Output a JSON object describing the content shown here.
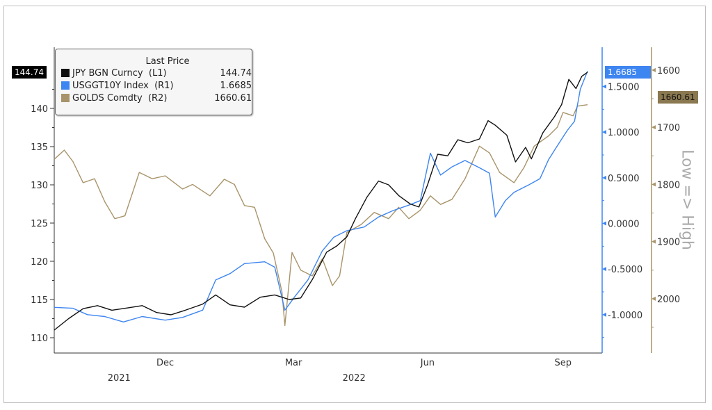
{
  "chart_data": {
    "type": "line",
    "title": "",
    "legend": {
      "title": "Last Price",
      "placement": "top-left"
    },
    "x_ticks": [
      {
        "label": "Dec",
        "date": "2021-12-01"
      },
      {
        "label": "Mar",
        "date": "2022-02-28"
      },
      {
        "label": "Jun",
        "date": "2022-06-01"
      },
      {
        "label": "Sep",
        "date": "2022-09-03"
      }
    ],
    "year_labels": [
      {
        "label": "2021",
        "date": "2021-10-30"
      },
      {
        "label": "2022",
        "date": "2022-04-11"
      }
    ],
    "xlim": [
      "2021-09-15",
      "2022-09-20"
    ],
    "axes": {
      "L1": {
        "range": [
          108,
          148
        ],
        "ticks": [
          "110",
          "115",
          "120",
          "125",
          "130",
          "135",
          "140"
        ],
        "color": "#000000"
      },
      "R1": {
        "range": [
          -1.42,
          1.93
        ],
        "ticks": [
          "1.5000",
          "1.0000",
          "0.5000",
          "0.0000",
          "-0.5000",
          "-1.0000"
        ],
        "color": "#3d85f0"
      },
      "R2": {
        "range": [
          1560,
          2095
        ],
        "inverted": true,
        "ticks": [
          "1600",
          "1700",
          "1800",
          "1900",
          "2000"
        ],
        "color": "#a8946a",
        "label": "Low => High"
      }
    },
    "series": [
      {
        "name": "JPY BGN Curncy",
        "axis": "L1",
        "label": "(L1)",
        "last": "144.74",
        "color": "#111111",
        "points": [
          [
            "2021-09-15",
            111
          ],
          [
            "2021-09-25",
            112.5
          ],
          [
            "2021-10-05",
            113.8
          ],
          [
            "2021-10-15",
            114.2
          ],
          [
            "2021-10-25",
            113.6
          ],
          [
            "2021-11-05",
            113.9
          ],
          [
            "2021-11-15",
            114.2
          ],
          [
            "2021-11-25",
            113.3
          ],
          [
            "2021-12-05",
            113.0
          ],
          [
            "2021-12-15",
            113.6
          ],
          [
            "2021-12-27",
            114.4
          ],
          [
            "2022-01-05",
            115.6
          ],
          [
            "2022-01-15",
            114.3
          ],
          [
            "2022-01-25",
            114.0
          ],
          [
            "2022-02-05",
            115.3
          ],
          [
            "2022-02-15",
            115.6
          ],
          [
            "2022-02-25",
            115.0
          ],
          [
            "2022-03-05",
            115.2
          ],
          [
            "2022-03-13",
            117.6
          ],
          [
            "2022-03-23",
            121.2
          ],
          [
            "2022-03-30",
            122.0
          ],
          [
            "2022-04-06",
            123.2
          ],
          [
            "2022-04-12",
            125.6
          ],
          [
            "2022-04-20",
            128.4
          ],
          [
            "2022-04-28",
            130.5
          ],
          [
            "2022-05-05",
            130.0
          ],
          [
            "2022-05-12",
            128.6
          ],
          [
            "2022-05-20",
            127.5
          ],
          [
            "2022-05-26",
            127.1
          ],
          [
            "2022-06-01",
            130.0
          ],
          [
            "2022-06-08",
            134.0
          ],
          [
            "2022-06-15",
            133.8
          ],
          [
            "2022-06-22",
            135.9
          ],
          [
            "2022-06-29",
            135.5
          ],
          [
            "2022-07-07",
            136.0
          ],
          [
            "2022-07-13",
            138.4
          ],
          [
            "2022-07-18",
            137.8
          ],
          [
            "2022-07-26",
            136.5
          ],
          [
            "2022-08-01",
            133.0
          ],
          [
            "2022-08-08",
            134.9
          ],
          [
            "2022-08-12",
            133.4
          ],
          [
            "2022-08-20",
            136.8
          ],
          [
            "2022-08-28",
            138.9
          ],
          [
            "2022-09-02",
            140.5
          ],
          [
            "2022-09-07",
            143.8
          ],
          [
            "2022-09-12",
            142.6
          ],
          [
            "2022-09-16",
            144.2
          ],
          [
            "2022-09-20",
            144.74
          ]
        ]
      },
      {
        "name": "USGGT10Y Index",
        "axis": "R1",
        "label": "(R1)",
        "last": "1.6685",
        "color": "#3d85f0",
        "points": [
          [
            "2021-09-15",
            -0.92
          ],
          [
            "2021-09-28",
            -0.93
          ],
          [
            "2021-10-08",
            -1.0
          ],
          [
            "2021-10-20",
            -1.02
          ],
          [
            "2021-11-02",
            -1.08
          ],
          [
            "2021-11-15",
            -1.02
          ],
          [
            "2021-12-01",
            -1.06
          ],
          [
            "2021-12-13",
            -1.03
          ],
          [
            "2021-12-27",
            -0.95
          ],
          [
            "2022-01-05",
            -0.62
          ],
          [
            "2022-01-15",
            -0.55
          ],
          [
            "2022-01-25",
            -0.44
          ],
          [
            "2022-02-08",
            -0.42
          ],
          [
            "2022-02-15",
            -0.48
          ],
          [
            "2022-02-22",
            -0.95
          ],
          [
            "2022-03-01",
            -0.8
          ],
          [
            "2022-03-10",
            -0.62
          ],
          [
            "2022-03-20",
            -0.3
          ],
          [
            "2022-03-28",
            -0.15
          ],
          [
            "2022-04-06",
            -0.08
          ],
          [
            "2022-04-18",
            -0.04
          ],
          [
            "2022-04-28",
            0.07
          ],
          [
            "2022-05-08",
            0.14
          ],
          [
            "2022-05-19",
            0.2
          ],
          [
            "2022-05-27",
            0.25
          ],
          [
            "2022-06-03",
            0.77
          ],
          [
            "2022-06-10",
            0.53
          ],
          [
            "2022-06-18",
            0.62
          ],
          [
            "2022-06-27",
            0.69
          ],
          [
            "2022-07-07",
            0.61
          ],
          [
            "2022-07-14",
            0.55
          ],
          [
            "2022-07-18",
            0.07
          ],
          [
            "2022-07-25",
            0.25
          ],
          [
            "2022-07-31",
            0.34
          ],
          [
            "2022-08-10",
            0.42
          ],
          [
            "2022-08-18",
            0.49
          ],
          [
            "2022-08-24",
            0.7
          ],
          [
            "2022-08-30",
            0.85
          ],
          [
            "2022-09-06",
            1.02
          ],
          [
            "2022-09-11",
            1.12
          ],
          [
            "2022-09-15",
            1.47
          ],
          [
            "2022-09-20",
            1.6685
          ]
        ]
      },
      {
        "name": "GOLDS Comdty",
        "axis": "R2",
        "label": "(R2)",
        "last": "1660.61",
        "color": "#a8946a",
        "points": [
          [
            "2021-09-15",
            1756
          ],
          [
            "2021-09-22",
            1740
          ],
          [
            "2021-09-28",
            1760
          ],
          [
            "2021-10-05",
            1797
          ],
          [
            "2021-10-13",
            1790
          ],
          [
            "2021-10-20",
            1830
          ],
          [
            "2021-10-27",
            1860
          ],
          [
            "2021-11-03",
            1855
          ],
          [
            "2021-11-13",
            1779
          ],
          [
            "2021-11-22",
            1790
          ],
          [
            "2021-12-01",
            1785
          ],
          [
            "2021-12-13",
            1808
          ],
          [
            "2021-12-20",
            1800
          ],
          [
            "2022-01-01",
            1820
          ],
          [
            "2022-01-11",
            1791
          ],
          [
            "2022-01-18",
            1800
          ],
          [
            "2022-01-25",
            1837
          ],
          [
            "2022-02-01",
            1840
          ],
          [
            "2022-02-08",
            1895
          ],
          [
            "2022-02-14",
            1920
          ],
          [
            "2022-02-20",
            1988
          ],
          [
            "2022-02-22",
            2047
          ],
          [
            "2022-02-27",
            1919
          ],
          [
            "2022-03-05",
            1950
          ],
          [
            "2022-03-13",
            1960
          ],
          [
            "2022-03-20",
            1930
          ],
          [
            "2022-03-27",
            1977
          ],
          [
            "2022-04-01",
            1960
          ],
          [
            "2022-04-06",
            1884
          ],
          [
            "2022-04-16",
            1870
          ],
          [
            "2022-04-25",
            1849
          ],
          [
            "2022-05-05",
            1860
          ],
          [
            "2022-05-12",
            1840
          ],
          [
            "2022-05-19",
            1860
          ],
          [
            "2022-05-27",
            1845
          ],
          [
            "2022-06-03",
            1820
          ],
          [
            "2022-06-10",
            1835
          ],
          [
            "2022-06-18",
            1826
          ],
          [
            "2022-06-27",
            1790
          ],
          [
            "2022-07-07",
            1733
          ],
          [
            "2022-07-14",
            1745
          ],
          [
            "2022-07-21",
            1779
          ],
          [
            "2022-07-31",
            1797
          ],
          [
            "2022-08-07",
            1770
          ],
          [
            "2022-08-14",
            1733
          ],
          [
            "2022-08-24",
            1715
          ],
          [
            "2022-08-30",
            1700
          ],
          [
            "2022-09-03",
            1674
          ],
          [
            "2022-09-10",
            1680
          ],
          [
            "2022-09-13",
            1663
          ],
          [
            "2022-09-20",
            1660.61
          ]
        ]
      }
    ]
  }
}
